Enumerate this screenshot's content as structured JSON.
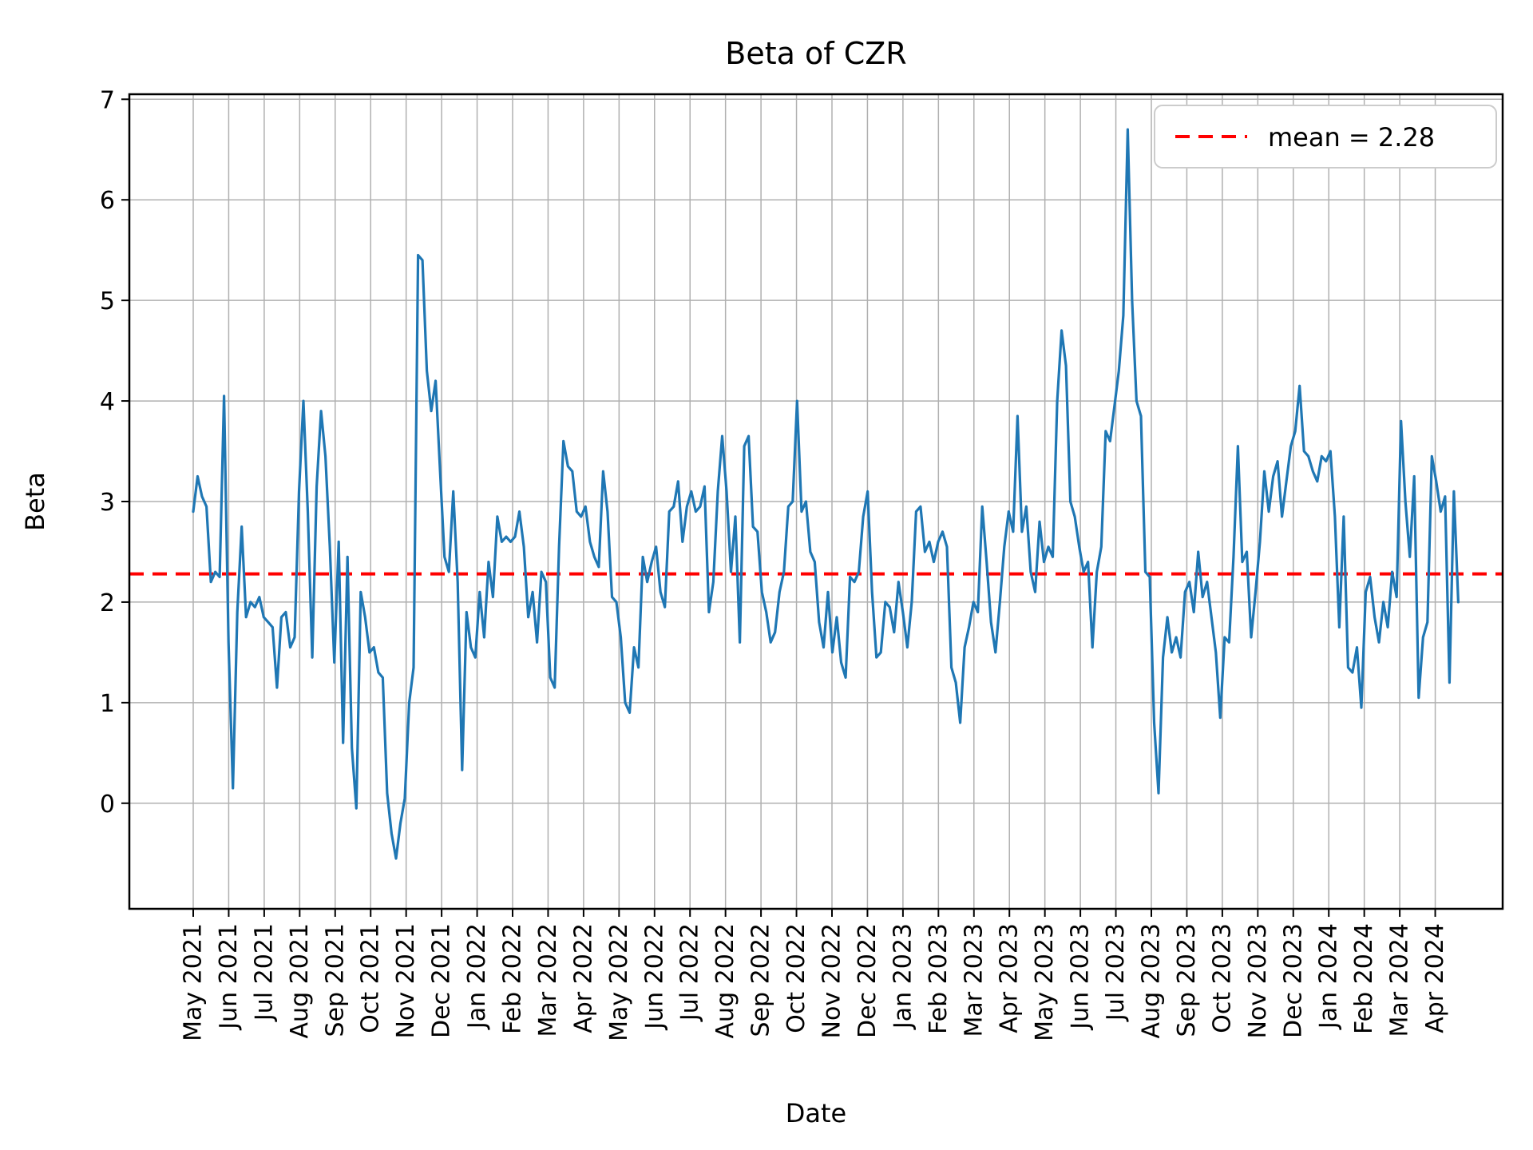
{
  "chart_data": {
    "type": "line",
    "title": "Beta of CZR",
    "xlabel": "Date",
    "ylabel": "Beta",
    "legend_label": "mean = 2.28",
    "legend_position": "upper right",
    "mean": 2.28,
    "grid": true,
    "yticks": [
      0,
      1,
      2,
      3,
      4,
      5,
      6,
      7
    ],
    "ylim": [
      -1.05,
      7.05
    ],
    "grid_color": "#b0b0b0",
    "mean_line_color": "#ff0000",
    "categories": [
      "May 2021",
      "Jun 2021",
      "Jul 2021",
      "Aug 2021",
      "Sep 2021",
      "Oct 2021",
      "Nov 2021",
      "Dec 2021",
      "Jan 2022",
      "Feb 2022",
      "Mar 2022",
      "Apr 2022",
      "May 2022",
      "Jun 2022",
      "Jul 2022",
      "Aug 2022",
      "Sep 2022",
      "Oct 2022",
      "Nov 2022",
      "Dec 2022",
      "Jan 2023",
      "Feb 2023",
      "Mar 2023",
      "Apr 2023",
      "May 2023",
      "Jun 2023",
      "Jul 2023",
      "Aug 2023",
      "Sep 2023",
      "Oct 2023",
      "Nov 2023",
      "Dec 2023",
      "Jan 2024",
      "Feb 2024",
      "Mar 2024",
      "Apr 2024"
    ],
    "series": [
      {
        "name": "Beta of CZR",
        "color": "#1f77b4",
        "values": [
          2.9,
          3.25,
          3.05,
          2.95,
          2.2,
          2.3,
          2.25,
          4.05,
          1.6,
          0.15,
          1.9,
          2.75,
          1.85,
          2.0,
          1.95,
          2.05,
          1.85,
          1.8,
          1.75,
          1.15,
          1.85,
          1.9,
          1.55,
          1.65,
          3.1,
          4.0,
          2.9,
          1.45,
          3.15,
          3.9,
          3.45,
          2.55,
          1.4,
          2.6,
          0.6,
          2.45,
          0.55,
          -0.05,
          2.1,
          1.85,
          1.5,
          1.55,
          1.3,
          1.25,
          0.1,
          -0.3,
          -0.55,
          -0.2,
          0.05,
          1.0,
          1.35,
          5.45,
          5.4,
          4.3,
          3.9,
          4.2,
          3.3,
          2.45,
          2.3,
          3.1,
          2.2,
          0.33,
          1.9,
          1.55,
          1.45,
          2.1,
          1.65,
          2.4,
          2.05,
          2.85,
          2.6,
          2.65,
          2.6,
          2.65,
          2.9,
          2.55,
          1.85,
          2.1,
          1.6,
          2.3,
          2.2,
          1.25,
          1.15,
          2.55,
          3.6,
          3.35,
          3.3,
          2.9,
          2.85,
          2.95,
          2.6,
          2.45,
          2.35,
          3.3,
          2.9,
          2.05,
          2.0,
          1.65,
          1.0,
          0.9,
          1.55,
          1.35,
          2.45,
          2.2,
          2.4,
          2.55,
          2.1,
          1.95,
          2.9,
          2.95,
          3.2,
          2.6,
          2.95,
          3.1,
          2.9,
          2.95,
          3.15,
          1.9,
          2.2,
          3.1,
          3.65,
          3.1,
          2.3,
          2.85,
          1.6,
          3.55,
          3.65,
          2.75,
          2.7,
          2.1,
          1.9,
          1.6,
          1.7,
          2.1,
          2.3,
          2.95,
          3.0,
          4.0,
          2.9,
          3.0,
          2.5,
          2.4,
          1.8,
          1.55,
          2.1,
          1.5,
          1.85,
          1.4,
          1.25,
          2.25,
          2.2,
          2.3,
          2.85,
          3.1,
          2.1,
          1.45,
          1.5,
          2.0,
          1.95,
          1.7,
          2.2,
          1.9,
          1.55,
          2.0,
          2.9,
          2.95,
          2.5,
          2.6,
          2.4,
          2.6,
          2.7,
          2.55,
          1.35,
          1.2,
          0.8,
          1.55,
          1.75,
          2.0,
          1.9,
          2.95,
          2.4,
          1.8,
          1.5,
          2.0,
          2.55,
          2.9,
          2.7,
          3.85,
          2.7,
          2.95,
          2.3,
          2.1,
          2.8,
          2.4,
          2.55,
          2.45,
          4.0,
          4.7,
          4.35,
          3.0,
          2.85,
          2.55,
          2.3,
          2.4,
          1.55,
          2.3,
          2.55,
          3.7,
          3.6,
          3.95,
          4.3,
          4.85,
          6.7,
          5.0,
          4.0,
          3.85,
          2.3,
          2.25,
          0.8,
          0.1,
          1.45,
          1.85,
          1.5,
          1.65,
          1.45,
          2.1,
          2.2,
          1.9,
          2.5,
          2.05,
          2.2,
          1.85,
          1.5,
          0.85,
          1.65,
          1.6,
          2.45,
          3.55,
          2.4,
          2.5,
          1.65,
          2.1,
          2.6,
          3.3,
          2.9,
          3.25,
          3.4,
          2.85,
          3.2,
          3.55,
          3.7,
          4.15,
          3.5,
          3.45,
          3.3,
          3.2,
          3.45,
          3.4,
          3.5,
          2.85,
          1.75,
          2.85,
          1.35,
          1.3,
          1.55,
          0.95,
          2.1,
          2.25,
          1.85,
          1.6,
          2.0,
          1.75,
          2.3,
          2.05,
          3.8,
          3.0,
          2.45,
          3.25,
          1.05,
          1.65,
          1.8,
          3.45,
          3.2,
          2.9,
          3.05,
          1.2,
          3.1,
          2.0
        ]
      }
    ]
  }
}
